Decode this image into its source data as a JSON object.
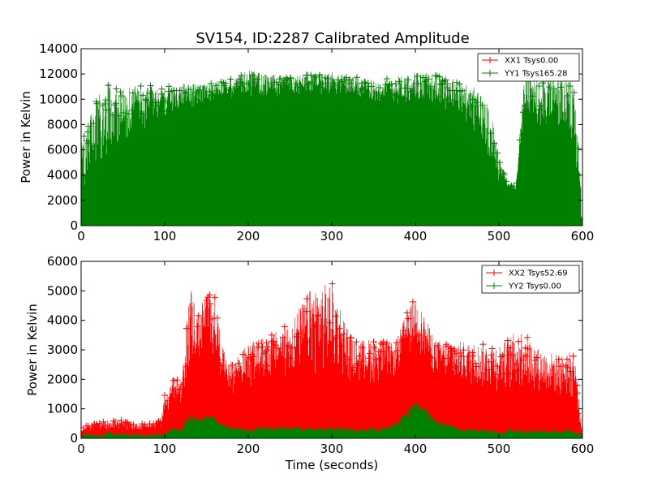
{
  "figure": {
    "title": "SV154, ID:2287 Calibrated Amplitude"
  },
  "chart_data": [
    {
      "type": "line",
      "title": "SV154, ID:2287 Calibrated Amplitude",
      "xlabel": "",
      "ylabel": "Power in Kelvin",
      "xlim": [
        0,
        600
      ],
      "ylim": [
        0,
        14000
      ],
      "xticks": [
        "0",
        "100",
        "200",
        "300",
        "400",
        "500",
        "600"
      ],
      "yticks": [
        "0",
        "2000",
        "4000",
        "6000",
        "8000",
        "10000",
        "12000",
        "14000"
      ],
      "legend_position": "top-right",
      "grid": false,
      "series": [
        {
          "name": "XX1 Tsys0.00",
          "color": "#ff0000",
          "marker": "+",
          "x": [
            0,
            600
          ],
          "envelope_max": [
            0,
            0
          ],
          "fill_level": [
            0,
            0
          ]
        },
        {
          "name": "YY1 Tsys165.28",
          "color": "#008000",
          "marker": "+",
          "x": [
            0,
            10,
            25,
            50,
            75,
            100,
            125,
            150,
            175,
            200,
            225,
            250,
            275,
            300,
            325,
            350,
            375,
            400,
            425,
            450,
            475,
            490,
            500,
            510,
            520,
            530,
            550,
            575,
            590,
            597,
            600
          ],
          "envelope_max": [
            6500,
            8500,
            11500,
            10800,
            11200,
            11000,
            11300,
            11200,
            11500,
            12300,
            12000,
            11800,
            12000,
            12200,
            11800,
            11500,
            11800,
            12200,
            12000,
            11500,
            10800,
            9500,
            5500,
            3500,
            3000,
            12000,
            12200,
            11800,
            11500,
            5000,
            0
          ],
          "fill_level": [
            2500,
            3500,
            4500,
            6000,
            7500,
            8500,
            9000,
            9500,
            9800,
            10000,
            10000,
            10200,
            10300,
            10300,
            10000,
            9500,
            9300,
            9500,
            9500,
            8500,
            6500,
            5000,
            3500,
            3000,
            2800,
            7000,
            7500,
            7000,
            5000,
            1000,
            0
          ]
        }
      ]
    },
    {
      "type": "line",
      "title": "",
      "xlabel": "Time (seconds)",
      "ylabel": "Power in Kelvin",
      "xlim": [
        0,
        600
      ],
      "ylim": [
        0,
        6000
      ],
      "xticks": [
        "0",
        "100",
        "200",
        "300",
        "400",
        "500",
        "600"
      ],
      "yticks": [
        "0",
        "1000",
        "2000",
        "3000",
        "4000",
        "5000",
        "6000"
      ],
      "legend_position": "top-right",
      "grid": false,
      "series": [
        {
          "name": "XX2 Tsys52.69",
          "color": "#ff0000",
          "marker": "+",
          "x": [
            0,
            20,
            40,
            60,
            80,
            95,
            100,
            110,
            120,
            125,
            130,
            140,
            150,
            160,
            170,
            180,
            200,
            225,
            250,
            275,
            300,
            325,
            350,
            375,
            390,
            400,
            410,
            425,
            450,
            475,
            500,
            525,
            550,
            575,
            590,
            598,
            600
          ],
          "envelope_max": [
            400,
            500,
            700,
            500,
            500,
            600,
            1500,
            2200,
            1800,
            3500,
            5300,
            4200,
            5100,
            4800,
            3000,
            2600,
            3200,
            3500,
            3900,
            5100,
            5300,
            3300,
            3400,
            3200,
            4300,
            4800,
            4200,
            3300,
            3300,
            3200,
            3200,
            3700,
            3000,
            2800,
            3000,
            800,
            0
          ],
          "fill_level": [
            200,
            250,
            300,
            250,
            300,
            350,
            600,
            1000,
            900,
            1800,
            2200,
            2500,
            2800,
            2600,
            1800,
            1500,
            1700,
            1900,
            2000,
            2100,
            2000,
            1800,
            1800,
            2000,
            2600,
            3000,
            2500,
            2000,
            1700,
            1600,
            1500,
            1500,
            1400,
            1300,
            1200,
            300,
            0
          ]
        },
        {
          "name": "YY2 Tsys0.00",
          "color": "#008000",
          "marker": "+",
          "x": [
            0,
            20,
            40,
            60,
            80,
            95,
            100,
            110,
            120,
            125,
            130,
            140,
            150,
            160,
            170,
            180,
            200,
            225,
            250,
            275,
            300,
            325,
            350,
            375,
            390,
            400,
            410,
            425,
            450,
            475,
            500,
            525,
            550,
            575,
            590,
            598,
            600
          ],
          "envelope_max": [
            80,
            100,
            120,
            100,
            100,
            120,
            200,
            300,
            300,
            600,
            700,
            650,
            700,
            650,
            500,
            350,
            300,
            350,
            350,
            350,
            300,
            300,
            300,
            400,
            900,
            1200,
            1000,
            600,
            300,
            250,
            250,
            250,
            250,
            250,
            200,
            100,
            0
          ],
          "fill_level": [
            40,
            50,
            60,
            50,
            50,
            60,
            100,
            150,
            150,
            300,
            450,
            450,
            500,
            450,
            300,
            200,
            180,
            200,
            200,
            200,
            180,
            180,
            180,
            250,
            600,
            900,
            800,
            400,
            200,
            150,
            150,
            150,
            150,
            150,
            120,
            50,
            0
          ]
        }
      ]
    }
  ]
}
